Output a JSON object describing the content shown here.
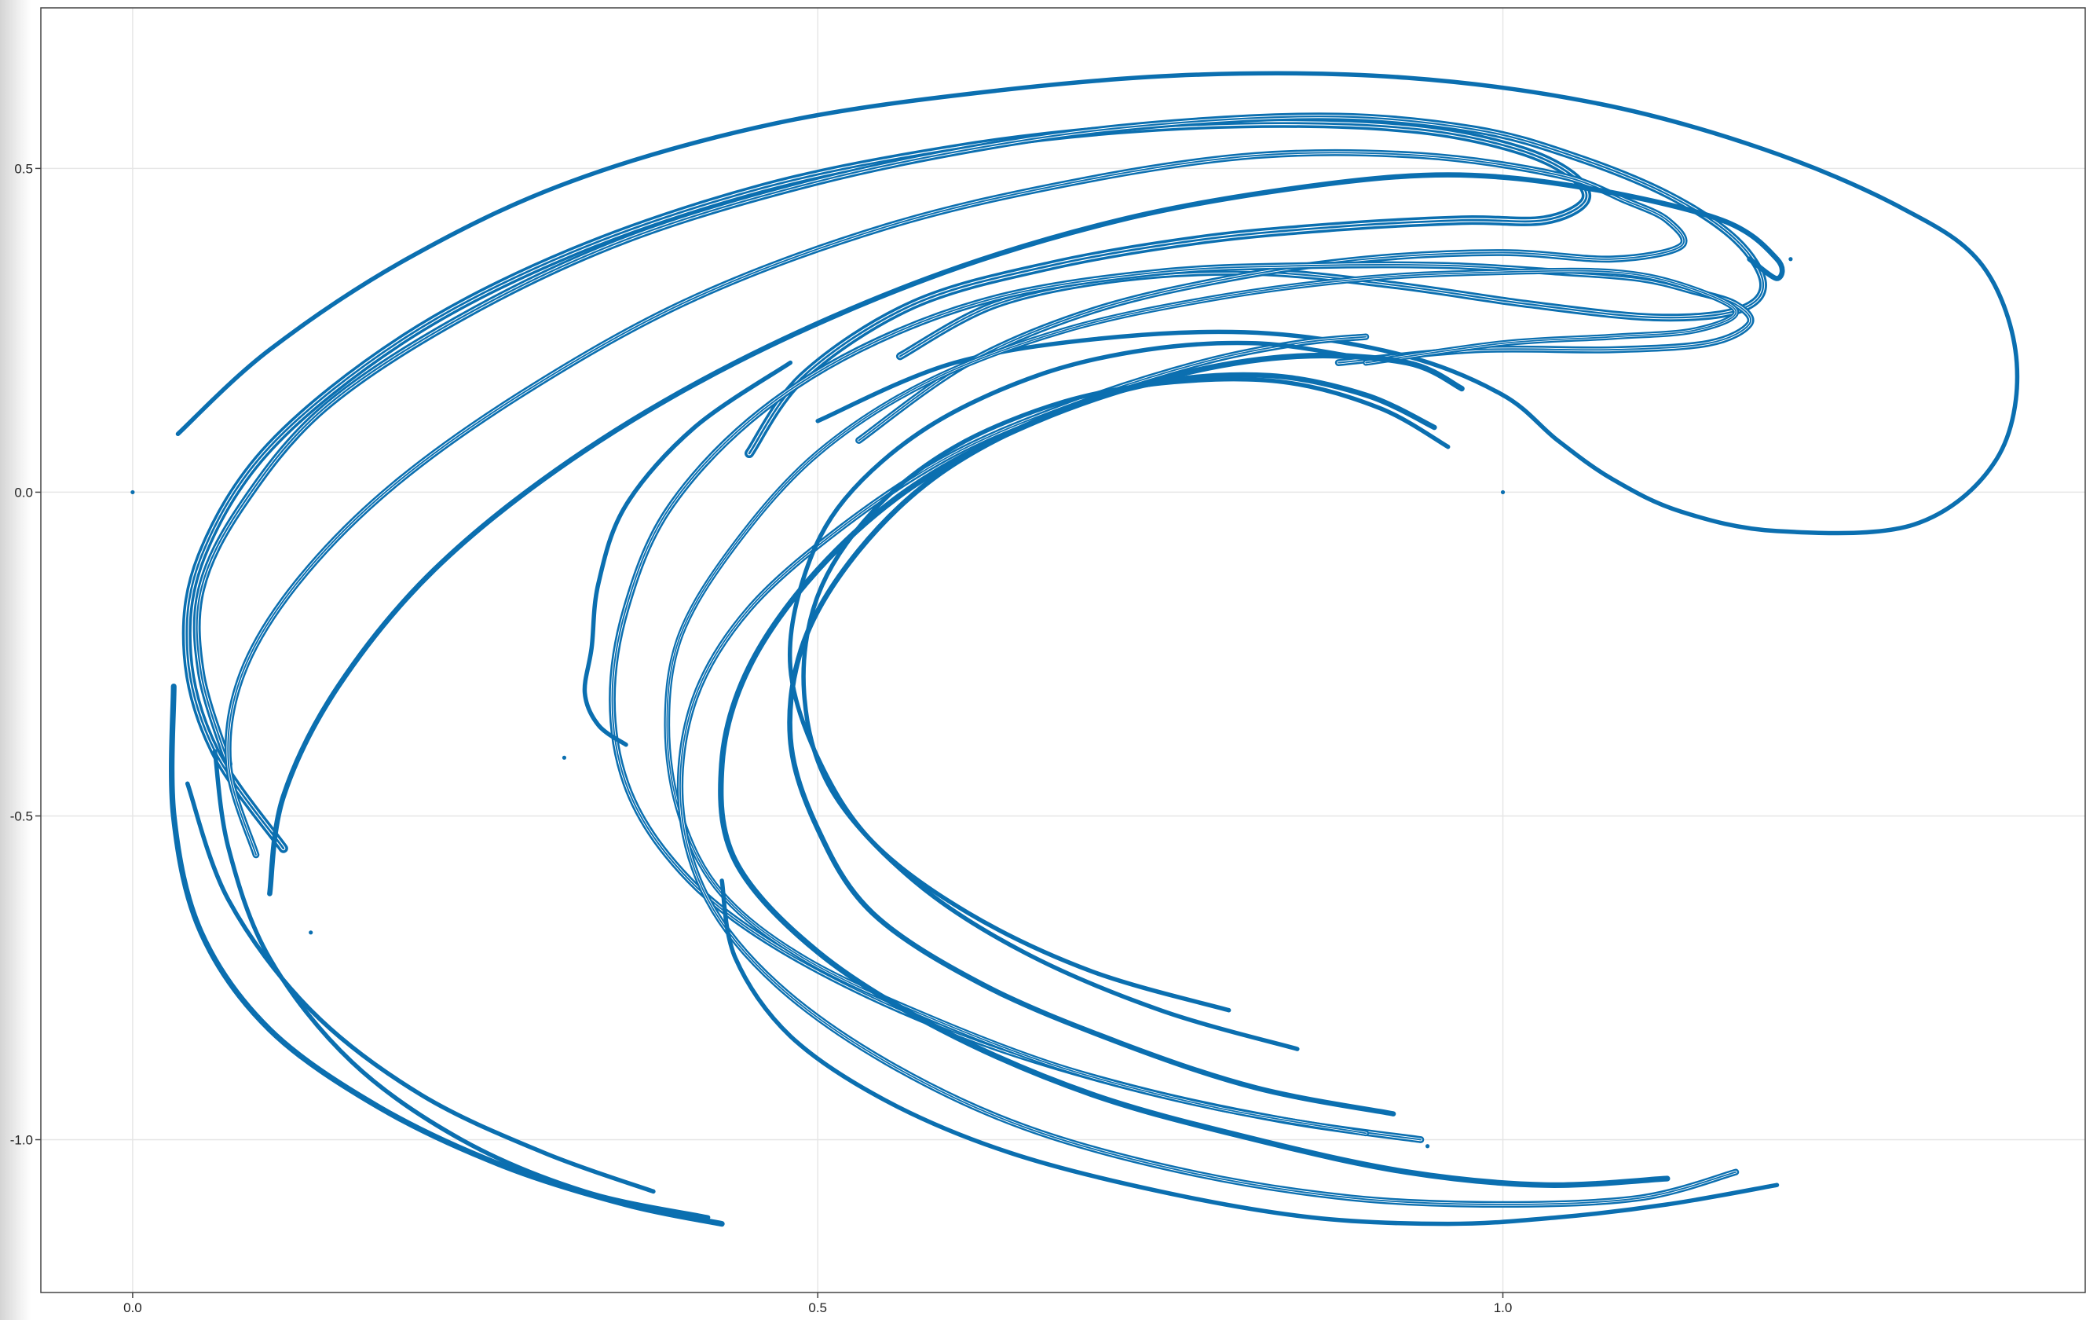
{
  "chart_data": {
    "type": "scatter",
    "title": "",
    "xlabel": "",
    "ylabel": "",
    "xlim": [
      -0.067,
      1.425
    ],
    "ylim": [
      -1.236,
      0.748
    ],
    "xticks": [
      0.0,
      0.5,
      1.0
    ],
    "xtick_labels": [
      "0.0",
      "0.5",
      "1.0"
    ],
    "yticks": [
      0.5,
      0.0,
      -0.5,
      -1.0
    ],
    "ytick_labels": [
      "0.5",
      "0.0",
      "-0.5",
      "-1.0"
    ],
    "grid": true,
    "legend": "none",
    "marker_color": "#0b6fb0",
    "series": [
      {
        "description": "attractor point cloud (dense folded strands)",
        "strands": [
          {
            "w": 1.0,
            "x": [
              0.033,
              0.1,
              0.2,
              0.32,
              0.47,
              0.63,
              0.78,
              0.93,
              1.07,
              1.19,
              1.29,
              1.35,
              1.375,
              1.36,
              1.3,
              1.2,
              1.13,
              1.08,
              1.04,
              1.0,
              0.93,
              0.83,
              0.72,
              0.6,
              0.5
            ],
            "y": [
              0.09,
              0.22,
              0.36,
              0.48,
              0.57,
              0.62,
              0.645,
              0.64,
              0.6,
              0.53,
              0.44,
              0.35,
              0.2,
              0.05,
              -0.05,
              -0.06,
              -0.03,
              0.02,
              0.08,
              0.15,
              0.21,
              0.245,
              0.24,
              0.2,
              0.11
            ]
          },
          {
            "w": 2.2,
            "x": [
              0.11,
              0.06,
              0.04,
              0.05,
              0.1,
              0.2,
              0.32,
              0.46,
              0.6,
              0.72,
              0.84,
              0.94,
              1.01,
              1.05,
              1.06,
              1.03,
              0.97,
              0.88,
              0.78,
              0.67,
              0.57,
              0.49,
              0.45
            ],
            "y": [
              -0.55,
              -0.4,
              -0.25,
              -0.1,
              0.07,
              0.24,
              0.37,
              0.47,
              0.53,
              0.56,
              0.57,
              0.56,
              0.53,
              0.49,
              0.45,
              0.42,
              0.42,
              0.41,
              0.39,
              0.35,
              0.29,
              0.18,
              0.06
            ]
          },
          {
            "w": 1.8,
            "x": [
              0.07,
              0.05,
              0.05,
              0.08,
              0.14,
              0.24,
              0.36,
              0.5,
              0.64,
              0.76,
              0.88,
              0.98,
              1.05,
              1.12,
              1.17,
              1.19,
              1.17,
              1.11,
              1.02,
              0.92,
              0.82,
              0.72,
              0.63,
              0.56
            ],
            "y": [
              -0.42,
              -0.28,
              -0.15,
              -0.02,
              0.13,
              0.27,
              0.39,
              0.48,
              0.54,
              0.57,
              0.58,
              0.56,
              0.52,
              0.46,
              0.39,
              0.32,
              0.28,
              0.27,
              0.29,
              0.32,
              0.34,
              0.33,
              0.29,
              0.21
            ]
          },
          {
            "w": 1.6,
            "x": [
              0.09,
              0.07,
              0.08,
              0.12,
              0.19,
              0.29,
              0.41,
              0.55,
              0.69,
              0.82,
              0.94,
              1.04,
              1.09,
              1.12,
              1.13,
              1.08,
              1.0,
              0.9,
              0.8,
              0.7,
              0.61,
              0.53
            ],
            "y": [
              -0.56,
              -0.42,
              -0.28,
              -0.14,
              0.01,
              0.16,
              0.3,
              0.41,
              0.48,
              0.52,
              0.52,
              0.49,
              0.45,
              0.42,
              0.38,
              0.36,
              0.37,
              0.36,
              0.33,
              0.28,
              0.2,
              0.08
            ]
          },
          {
            "w": 1.2,
            "x": [
              0.1,
              0.11,
              0.15,
              0.22,
              0.32,
              0.44,
              0.58,
              0.72,
              0.85,
              0.96,
              1.06,
              1.16,
              1.2,
              1.2,
              1.18
            ],
            "y": [
              -0.62,
              -0.47,
              -0.3,
              -0.12,
              0.05,
              0.2,
              0.33,
              0.42,
              0.47,
              0.49,
              0.47,
              0.42,
              0.36,
              0.33,
              0.36
            ]
          },
          {
            "w": 1.3,
            "x": [
              0.43,
              0.36,
              0.27,
              0.18,
              0.1,
              0.05,
              0.03,
              0.03
            ],
            "y": [
              -1.13,
              -1.1,
              -1.04,
              -0.95,
              -0.83,
              -0.68,
              -0.5,
              -0.3
            ]
          },
          {
            "w": 1.0,
            "x": [
              0.38,
              0.3,
              0.21,
              0.13,
              0.07,
              0.04
            ],
            "y": [
              -1.08,
              -1.02,
              -0.93,
              -0.8,
              -0.63,
              -0.45
            ]
          },
          {
            "w": 1.0,
            "x": [
              0.42,
              0.33,
              0.24,
              0.16,
              0.1,
              0.07,
              0.06
            ],
            "y": [
              -1.12,
              -1.08,
              -1.0,
              -0.88,
              -0.72,
              -0.55,
              -0.4
            ]
          },
          {
            "w": 1.6,
            "x": [
              0.94,
              0.84,
              0.73,
              0.62,
              0.52,
              0.44,
              0.39,
              0.36,
              0.35,
              0.36,
              0.39,
              0.45,
              0.53,
              0.63,
              0.75,
              0.86,
              0.96,
              1.04,
              1.1,
              1.14,
              1.17,
              1.18,
              1.15,
              1.08,
              0.98,
              0.88
            ],
            "y": [
              -1.0,
              -0.97,
              -0.92,
              -0.85,
              -0.76,
              -0.66,
              -0.56,
              -0.45,
              -0.32,
              -0.18,
              -0.03,
              0.11,
              0.22,
              0.3,
              0.34,
              0.35,
              0.35,
              0.34,
              0.33,
              0.31,
              0.29,
              0.26,
              0.23,
              0.22,
              0.22,
              0.2
            ]
          },
          {
            "w": 1.4,
            "x": [
              0.9,
              0.79,
              0.68,
              0.58,
              0.49,
              0.43,
              0.4,
              0.39,
              0.4,
              0.44,
              0.5,
              0.58,
              0.68,
              0.79,
              0.9,
              1.0,
              1.08,
              1.13,
              1.17,
              1.14,
              1.08,
              1.0,
              0.9
            ],
            "y": [
              -0.99,
              -0.95,
              -0.89,
              -0.81,
              -0.72,
              -0.62,
              -0.5,
              -0.36,
              -0.22,
              -0.08,
              0.06,
              0.17,
              0.25,
              0.3,
              0.33,
              0.34,
              0.34,
              0.32,
              0.28,
              0.25,
              0.24,
              0.23,
              0.2
            ]
          },
          {
            "w": 1.0,
            "x": [
              0.36,
              0.34,
              0.33,
              0.335,
              0.34,
              0.36,
              0.41,
              0.48
            ],
            "y": [
              -0.39,
              -0.36,
              -0.31,
              -0.24,
              -0.14,
              -0.02,
              0.1,
              0.2
            ]
          },
          {
            "w": 1.5,
            "x": [
              1.17,
              1.1,
              1.0,
              0.89,
              0.77,
              0.65,
              0.55,
              0.47,
              0.42,
              0.4,
              0.41,
              0.45,
              0.52,
              0.6,
              0.69,
              0.78,
              0.85,
              0.9
            ],
            "y": [
              -1.05,
              -1.09,
              -1.1,
              -1.09,
              -1.05,
              -0.98,
              -0.88,
              -0.76,
              -0.63,
              -0.48,
              -0.32,
              -0.18,
              -0.05,
              0.06,
              0.14,
              0.2,
              0.23,
              0.24
            ]
          },
          {
            "w": 1.3,
            "x": [
              1.12,
              1.03,
              0.93,
              0.82,
              0.7,
              0.59,
              0.5,
              0.44,
              0.43,
              0.45,
              0.5,
              0.57,
              0.66,
              0.76,
              0.85,
              0.93,
              0.97
            ],
            "y": [
              -1.06,
              -1.07,
              -1.05,
              -1.0,
              -0.93,
              -0.83,
              -0.71,
              -0.57,
              -0.42,
              -0.27,
              -0.12,
              0.01,
              0.11,
              0.18,
              0.21,
              0.2,
              0.16
            ]
          },
          {
            "w": 1.0,
            "x": [
              0.85,
              0.75,
              0.65,
              0.57,
              0.51,
              0.49,
              0.5,
              0.54,
              0.6,
              0.68,
              0.76,
              0.84,
              0.91,
              0.96
            ],
            "y": [
              -0.86,
              -0.8,
              -0.71,
              -0.6,
              -0.46,
              -0.31,
              -0.16,
              -0.03,
              0.07,
              0.14,
              0.17,
              0.17,
              0.13,
              0.07
            ]
          },
          {
            "w": 1.2,
            "x": [
              0.92,
              0.82,
              0.72,
              0.62,
              0.54,
              0.5,
              0.48,
              0.49,
              0.53,
              0.59,
              0.67,
              0.75,
              0.83,
              0.9,
              0.95
            ],
            "y": [
              -0.96,
              -0.92,
              -0.85,
              -0.76,
              -0.65,
              -0.52,
              -0.38,
              -0.23,
              -0.09,
              0.03,
              0.12,
              0.17,
              0.18,
              0.15,
              0.1
            ]
          },
          {
            "w": 1.0,
            "x": [
              0.8,
              0.7,
              0.61,
              0.54,
              0.5,
              0.48,
              0.49,
              0.52,
              0.58,
              0.66,
              0.74,
              0.82,
              0.89
            ],
            "y": [
              -0.8,
              -0.74,
              -0.65,
              -0.54,
              -0.41,
              -0.27,
              -0.13,
              -0.01,
              0.1,
              0.18,
              0.22,
              0.23,
              0.21
            ]
          },
          {
            "w": 1.0,
            "x": [
              1.2,
              1.12,
              1.04,
              0.96,
              0.86,
              0.75,
              0.64,
              0.55,
              0.48,
              0.44,
              0.43
            ],
            "y": [
              -1.07,
              -1.1,
              -1.12,
              -1.13,
              -1.12,
              -1.08,
              -1.02,
              -0.94,
              -0.84,
              -0.72,
              -0.6
            ]
          }
        ],
        "isolated_points": [
          [
            0.0,
            0.0
          ],
          [
            1.0,
            0.0
          ],
          [
            0.315,
            -0.41
          ],
          [
            0.13,
            -0.68
          ],
          [
            0.945,
            -1.01
          ],
          [
            1.21,
            0.36
          ]
        ]
      }
    ]
  }
}
